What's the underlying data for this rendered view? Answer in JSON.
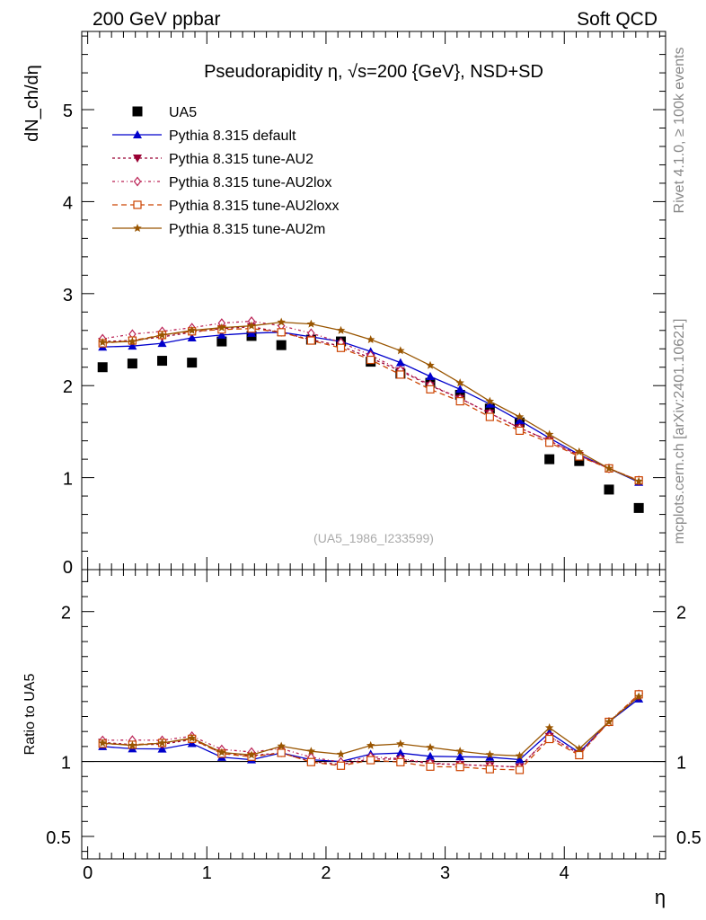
{
  "header": {
    "left": "200 GeV ppbar",
    "right": "Soft QCD"
  },
  "side_labels": {
    "rivet": "Rivet 4.1.0, ≥ 100k events",
    "mcplots": "mcplots.cern.ch [arXiv:2401.10621]"
  },
  "chart_data": [
    {
      "type": "line",
      "title": "Pseudorapidity η, √s=200 {GeV}, NSD+SD",
      "ylabel": "dN_ch/dη",
      "xlabel": "η",
      "watermark": "(UA5_1986_I233599)",
      "xlim": [
        -0.05,
        4.85
      ],
      "ylim": [
        0,
        5.85
      ],
      "yticks": [
        1,
        2,
        3,
        4,
        5
      ],
      "ytick_labels": [
        "1",
        "2",
        "3",
        "4",
        "5"
      ],
      "ytick_zero_label": "0",
      "x": [
        0.125,
        0.375,
        0.625,
        0.875,
        1.125,
        1.375,
        1.625,
        1.875,
        2.125,
        2.375,
        2.625,
        2.875,
        3.125,
        3.375,
        3.625,
        3.875,
        4.125,
        4.375,
        4.625
      ],
      "series": [
        {
          "name": "UA5",
          "color": "#000000",
          "marker": "square",
          "values": [
            2.2,
            2.24,
            2.27,
            2.25,
            2.48,
            2.54,
            2.44,
            2.5,
            2.48,
            2.26,
            2.13,
            2.03,
            1.9,
            1.75,
            1.6,
            1.2,
            1.18,
            0.87,
            0.67
          ]
        },
        {
          "name": "Pythia 8.315 default",
          "color": "#0000cc",
          "marker": "triangle",
          "dash": "",
          "values": [
            2.42,
            2.43,
            2.46,
            2.52,
            2.55,
            2.57,
            2.58,
            2.53,
            2.48,
            2.37,
            2.25,
            2.1,
            1.96,
            1.8,
            1.62,
            1.43,
            1.25,
            1.1,
            0.95
          ]
        },
        {
          "name": "Pythia 8.315 tune-AU2",
          "color": "#990033",
          "marker": "triangle-down",
          "dash": "3,3",
          "values": [
            2.48,
            2.49,
            2.53,
            2.58,
            2.62,
            2.64,
            2.58,
            2.5,
            2.43,
            2.3,
            2.16,
            2.0,
            1.86,
            1.7,
            1.54,
            1.4,
            1.24,
            1.1,
            0.96
          ]
        },
        {
          "name": "Pythia 8.315 tune-AU2lox",
          "color": "#bb2255",
          "marker": "diamond",
          "dash": "3,3,1,3",
          "values": [
            2.51,
            2.56,
            2.59,
            2.63,
            2.68,
            2.7,
            2.65,
            2.57,
            2.47,
            2.33,
            2.17,
            2.01,
            1.86,
            1.7,
            1.54,
            1.4,
            1.24,
            1.1,
            0.97
          ]
        },
        {
          "name": "Pythia 8.315 tune-AU2loxx",
          "color": "#cc4400",
          "marker": "square-open",
          "dash": "6,4",
          "values": [
            2.46,
            2.49,
            2.55,
            2.59,
            2.61,
            2.62,
            2.58,
            2.49,
            2.41,
            2.28,
            2.12,
            1.96,
            1.83,
            1.66,
            1.51,
            1.38,
            1.23,
            1.1,
            0.97
          ]
        },
        {
          "name": "Pythia 8.315 tune-AU2m",
          "color": "#995500",
          "marker": "star",
          "dash": "",
          "values": [
            2.47,
            2.48,
            2.55,
            2.6,
            2.63,
            2.65,
            2.69,
            2.67,
            2.6,
            2.5,
            2.38,
            2.22,
            2.03,
            1.83,
            1.66,
            1.47,
            1.28,
            1.1,
            0.96
          ]
        }
      ]
    },
    {
      "type": "line",
      "title": "",
      "ylabel": "Ratio to UA5",
      "xlabel": "η",
      "ylim": [
        0.35,
        2.28
      ],
      "yticks": [
        0.5,
        1,
        2
      ],
      "ytick_labels": [
        "0.5",
        "1",
        "2"
      ],
      "xticks": [
        0,
        1,
        2,
        3,
        4
      ],
      "xtick_labels": [
        "0",
        "1",
        "2",
        "3",
        "4"
      ],
      "reference_line": 1,
      "note": "ratio of each Pythia series to UA5 data"
    }
  ]
}
